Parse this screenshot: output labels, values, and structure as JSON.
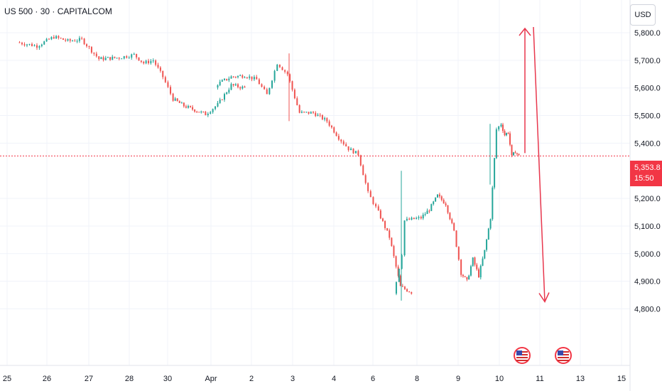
{
  "header": {
    "title": "US 500 · 30 · CAPITALCOM"
  },
  "currency_button": {
    "label": "USD"
  },
  "price_tag": {
    "price": "5,353.8",
    "countdown": "15:50"
  },
  "event_icons": [
    {
      "type": "us-flag-icon"
    },
    {
      "type": "us-flag-icon"
    }
  ],
  "colors": {
    "up": "#26a69a",
    "down": "#ef5350",
    "arrow": "#e8374d",
    "price_line": "#f23645"
  },
  "chart_data": {
    "type": "candlestick",
    "title": "US 500 · 30 · CAPITALCOM",
    "xlabel": "",
    "ylabel": "",
    "currency": "USD",
    "grid": true,
    "y_ticks": [
      "5,800.0",
      "5,700.0",
      "5,600.0",
      "5,500.0",
      "5,400.0",
      "5,200.0",
      "5,100.0",
      "5,000.0",
      "4,900.0",
      "4,800.0"
    ],
    "x_ticks": [
      "25",
      "26",
      "27",
      "28",
      "30",
      "Apr",
      "2",
      "3",
      "4",
      "6",
      "8",
      "9",
      "10",
      "11",
      "13",
      "15"
    ],
    "current_price": 5353.8,
    "countdown": "15:50",
    "price_path": [
      [
        "Mar 25",
        5765
      ],
      [
        "Mar 25",
        5752
      ],
      [
        "Mar 26",
        5785
      ],
      [
        "Mar 26",
        5770
      ],
      [
        "Mar 26",
        5775
      ],
      [
        "Mar 27",
        5705
      ],
      [
        "Mar 27",
        5710
      ],
      [
        "Mar 28",
        5720
      ],
      [
        "Mar 28",
        5690
      ],
      [
        "Mar 28",
        5700
      ],
      [
        "Mar 28",
        5640
      ],
      [
        "Mar 30",
        5560
      ],
      [
        "Mar 30",
        5535
      ],
      [
        "Mar 30",
        5520
      ],
      [
        "Mar 30",
        5505
      ],
      [
        "Mar 31",
        5540
      ],
      [
        "Mar 31",
        5610
      ],
      [
        "Mar 31",
        5600
      ],
      [
        "Apr 1",
        5615
      ],
      [
        "Apr 1",
        5640
      ],
      [
        "Apr 1",
        5645
      ],
      [
        "Apr 2",
        5630
      ],
      [
        "Apr 2",
        5575
      ],
      [
        "Apr 2",
        5690
      ],
      [
        "Apr 2",
        5650
      ],
      [
        "Apr 3",
        5510
      ],
      [
        "Apr 3",
        5510
      ],
      [
        "Apr 3",
        5480
      ],
      [
        "Apr 4",
        5420
      ],
      [
        "Apr 4",
        5380
      ],
      [
        "Apr 4",
        5360
      ],
      [
        "Apr 4",
        5220
      ],
      [
        "Apr 6",
        5150
      ],
      [
        "Apr 6",
        5060
      ],
      [
        "Apr 6",
        4880
      ],
      [
        "Apr 6",
        4860
      ],
      [
        "Apr 7",
        4900
      ],
      [
        "Apr 7",
        4950
      ],
      [
        "Apr 7",
        5000
      ],
      [
        "Apr 7",
        5120
      ],
      [
        "Apr 8",
        5130
      ],
      [
        "Apr 8",
        5160
      ],
      [
        "Apr 8",
        5210
      ],
      [
        "Apr 8",
        5180
      ],
      [
        "Apr 8",
        5080
      ],
      [
        "Apr 9",
        4930
      ],
      [
        "Apr 9",
        4900
      ],
      [
        "Apr 9",
        4980
      ],
      [
        "Apr 9",
        4920
      ],
      [
        "Apr 9",
        5010
      ],
      [
        "Apr 9",
        5130
      ],
      [
        "Apr 9",
        5450
      ],
      [
        "Apr 10",
        5470
      ],
      [
        "Apr 10",
        5430
      ],
      [
        "Apr 10",
        5440
      ],
      [
        "Apr 10",
        5350
      ],
      [
        "Apr 10",
        5370
      ],
      [
        "Apr 10",
        5354
      ]
    ],
    "annotations": [
      {
        "type": "arrow",
        "direction": "up",
        "from": 5353.8,
        "to": 5800
      },
      {
        "type": "arrow",
        "direction": "down",
        "from": 5800,
        "to": 4800
      }
    ]
  }
}
